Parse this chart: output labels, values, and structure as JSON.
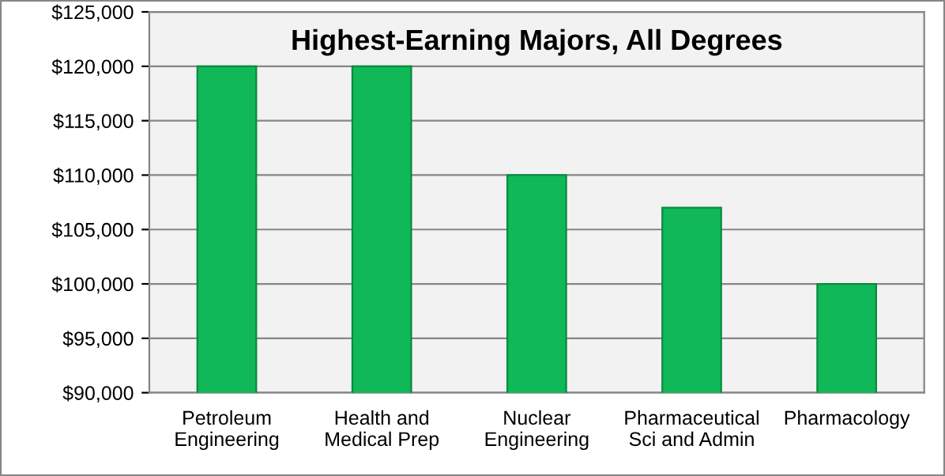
{
  "chart_data": {
    "type": "bar",
    "title": "Highest-Earning Majors, All Degrees",
    "categories": [
      "Petroleum\nEngineering",
      "Health and\nMedical Prep",
      "Nuclear\nEngineering",
      "Pharmaceutical\nSci and Admin",
      "Pharmacology"
    ],
    "values": [
      120000,
      120000,
      110000,
      107000,
      100000
    ],
    "color": "#10b858",
    "ylim": [
      90000,
      125000
    ],
    "yticks": [
      {
        "value": 90000,
        "label": "$90,000"
      },
      {
        "value": 95000,
        "label": "$95,000"
      },
      {
        "value": 100000,
        "label": "$100,000"
      },
      {
        "value": 105000,
        "label": "$105,000"
      },
      {
        "value": 110000,
        "label": "$110,000"
      },
      {
        "value": 115000,
        "label": "$115,000"
      },
      {
        "value": 120000,
        "label": "$120,000"
      },
      {
        "value": 125000,
        "label": "$125,000"
      }
    ],
    "grid": "y",
    "legend": false
  }
}
